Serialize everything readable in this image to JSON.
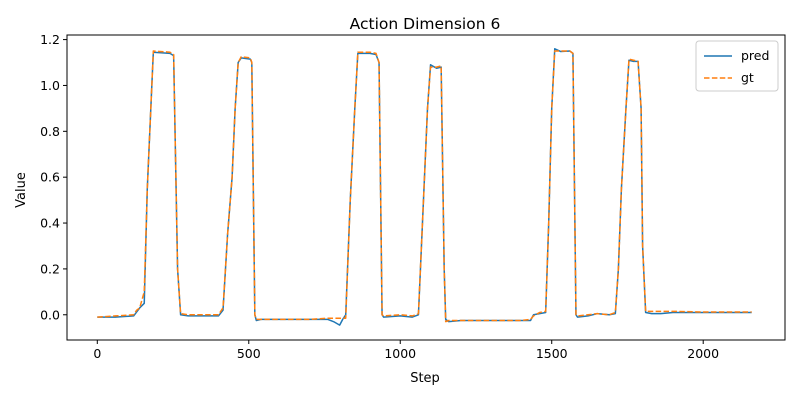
{
  "chart_data": {
    "type": "line",
    "title": "Action Dimension 6",
    "xlabel": "Step",
    "ylabel": "Value",
    "xlim": [
      -100,
      2270
    ],
    "ylim": [
      -0.11,
      1.22
    ],
    "xticks": [
      0,
      500,
      1000,
      1500,
      2000
    ],
    "yticks": [
      0.0,
      0.2,
      0.4,
      0.6,
      0.8,
      1.0,
      1.2
    ],
    "grid": false,
    "legend_position": "top-right",
    "series": [
      {
        "name": "pred",
        "color": "#1f77b4",
        "style": "solid",
        "points": [
          [
            0,
            -0.01
          ],
          [
            60,
            -0.01
          ],
          [
            120,
            -0.005
          ],
          [
            140,
            0.03
          ],
          [
            155,
            0.05
          ],
          [
            165,
            0.55
          ],
          [
            180,
            1.0
          ],
          [
            185,
            1.145
          ],
          [
            240,
            1.14
          ],
          [
            252,
            1.13
          ],
          [
            265,
            0.2
          ],
          [
            275,
            0.0
          ],
          [
            300,
            -0.005
          ],
          [
            400,
            -0.005
          ],
          [
            415,
            0.02
          ],
          [
            430,
            0.35
          ],
          [
            445,
            0.6
          ],
          [
            455,
            0.9
          ],
          [
            465,
            1.1
          ],
          [
            475,
            1.12
          ],
          [
            505,
            1.115
          ],
          [
            510,
            1.1
          ],
          [
            520,
            0.0
          ],
          [
            525,
            -0.025
          ],
          [
            540,
            -0.02
          ],
          [
            600,
            -0.02
          ],
          [
            700,
            -0.02
          ],
          [
            760,
            -0.02
          ],
          [
            780,
            -0.03
          ],
          [
            800,
            -0.045
          ],
          [
            810,
            -0.02
          ],
          [
            820,
            0.0
          ],
          [
            835,
            0.5
          ],
          [
            850,
            0.9
          ],
          [
            860,
            1.14
          ],
          [
            900,
            1.14
          ],
          [
            920,
            1.135
          ],
          [
            930,
            1.1
          ],
          [
            940,
            0.0
          ],
          [
            945,
            -0.01
          ],
          [
            1000,
            -0.005
          ],
          [
            1040,
            -0.01
          ],
          [
            1060,
            0.0
          ],
          [
            1075,
            0.45
          ],
          [
            1090,
            0.9
          ],
          [
            1100,
            1.09
          ],
          [
            1120,
            1.075
          ],
          [
            1135,
            1.08
          ],
          [
            1145,
            0.2
          ],
          [
            1150,
            -0.02
          ],
          [
            1160,
            -0.03
          ],
          [
            1200,
            -0.025
          ],
          [
            1300,
            -0.025
          ],
          [
            1400,
            -0.025
          ],
          [
            1430,
            -0.025
          ],
          [
            1440,
            0.0
          ],
          [
            1460,
            0.005
          ],
          [
            1480,
            0.01
          ],
          [
            1490,
            0.4
          ],
          [
            1500,
            0.9
          ],
          [
            1510,
            1.16
          ],
          [
            1530,
            1.148
          ],
          [
            1560,
            1.15
          ],
          [
            1570,
            1.14
          ],
          [
            1580,
            0.0
          ],
          [
            1585,
            -0.01
          ],
          [
            1620,
            -0.005
          ],
          [
            1650,
            0.005
          ],
          [
            1690,
            0.0
          ],
          [
            1710,
            0.005
          ],
          [
            1720,
            0.2
          ],
          [
            1730,
            0.55
          ],
          [
            1745,
            0.9
          ],
          [
            1755,
            1.11
          ],
          [
            1770,
            1.105
          ],
          [
            1785,
            1.105
          ],
          [
            1795,
            0.9
          ],
          [
            1800,
            0.3
          ],
          [
            1810,
            0.01
          ],
          [
            1830,
            0.005
          ],
          [
            1860,
            0.005
          ],
          [
            1900,
            0.01
          ],
          [
            2000,
            0.01
          ],
          [
            2100,
            0.01
          ],
          [
            2160,
            0.01
          ]
        ]
      },
      {
        "name": "gt",
        "color": "#ff7f0e",
        "style": "dashed",
        "points": [
          [
            0,
            -0.01
          ],
          [
            60,
            -0.005
          ],
          [
            120,
            0.0
          ],
          [
            130,
            0.02
          ],
          [
            140,
            0.03
          ],
          [
            155,
            0.1
          ],
          [
            165,
            0.55
          ],
          [
            180,
            1.0
          ],
          [
            185,
            1.15
          ],
          [
            240,
            1.145
          ],
          [
            252,
            1.135
          ],
          [
            265,
            0.2
          ],
          [
            275,
            0.005
          ],
          [
            300,
            0.0
          ],
          [
            400,
            0.0
          ],
          [
            415,
            0.03
          ],
          [
            430,
            0.35
          ],
          [
            445,
            0.6
          ],
          [
            455,
            0.9
          ],
          [
            465,
            1.1
          ],
          [
            475,
            1.125
          ],
          [
            505,
            1.12
          ],
          [
            510,
            1.1
          ],
          [
            520,
            0.0
          ],
          [
            525,
            -0.02
          ],
          [
            540,
            -0.02
          ],
          [
            600,
            -0.02
          ],
          [
            700,
            -0.02
          ],
          [
            760,
            -0.015
          ],
          [
            780,
            -0.015
          ],
          [
            800,
            -0.015
          ],
          [
            820,
            -0.015
          ],
          [
            835,
            0.5
          ],
          [
            850,
            0.9
          ],
          [
            860,
            1.145
          ],
          [
            900,
            1.145
          ],
          [
            920,
            1.14
          ],
          [
            930,
            1.1
          ],
          [
            940,
            0.0
          ],
          [
            945,
            -0.005
          ],
          [
            1000,
            0.0
          ],
          [
            1040,
            -0.005
          ],
          [
            1060,
            0.005
          ],
          [
            1075,
            0.45
          ],
          [
            1090,
            0.9
          ],
          [
            1100,
            1.08
          ],
          [
            1120,
            1.08
          ],
          [
            1135,
            1.085
          ],
          [
            1145,
            0.2
          ],
          [
            1150,
            -0.03
          ],
          [
            1160,
            -0.025
          ],
          [
            1200,
            -0.025
          ],
          [
            1300,
            -0.025
          ],
          [
            1400,
            -0.025
          ],
          [
            1430,
            -0.02
          ],
          [
            1440,
            -0.005
          ],
          [
            1460,
            0.01
          ],
          [
            1480,
            0.015
          ],
          [
            1490,
            0.4
          ],
          [
            1500,
            0.9
          ],
          [
            1510,
            1.15
          ],
          [
            1530,
            1.15
          ],
          [
            1560,
            1.15
          ],
          [
            1570,
            1.14
          ],
          [
            1580,
            0.0
          ],
          [
            1585,
            -0.005
          ],
          [
            1620,
            0.0
          ],
          [
            1650,
            0.005
          ],
          [
            1690,
            0.0
          ],
          [
            1710,
            0.01
          ],
          [
            1720,
            0.2
          ],
          [
            1730,
            0.55
          ],
          [
            1745,
            0.9
          ],
          [
            1755,
            1.115
          ],
          [
            1770,
            1.11
          ],
          [
            1785,
            1.105
          ],
          [
            1795,
            0.9
          ],
          [
            1800,
            0.3
          ],
          [
            1810,
            0.015
          ],
          [
            1830,
            0.015
          ],
          [
            1860,
            0.015
          ],
          [
            1900,
            0.015
          ],
          [
            2000,
            0.012
          ],
          [
            2100,
            0.012
          ],
          [
            2160,
            0.012
          ]
        ]
      }
    ]
  }
}
